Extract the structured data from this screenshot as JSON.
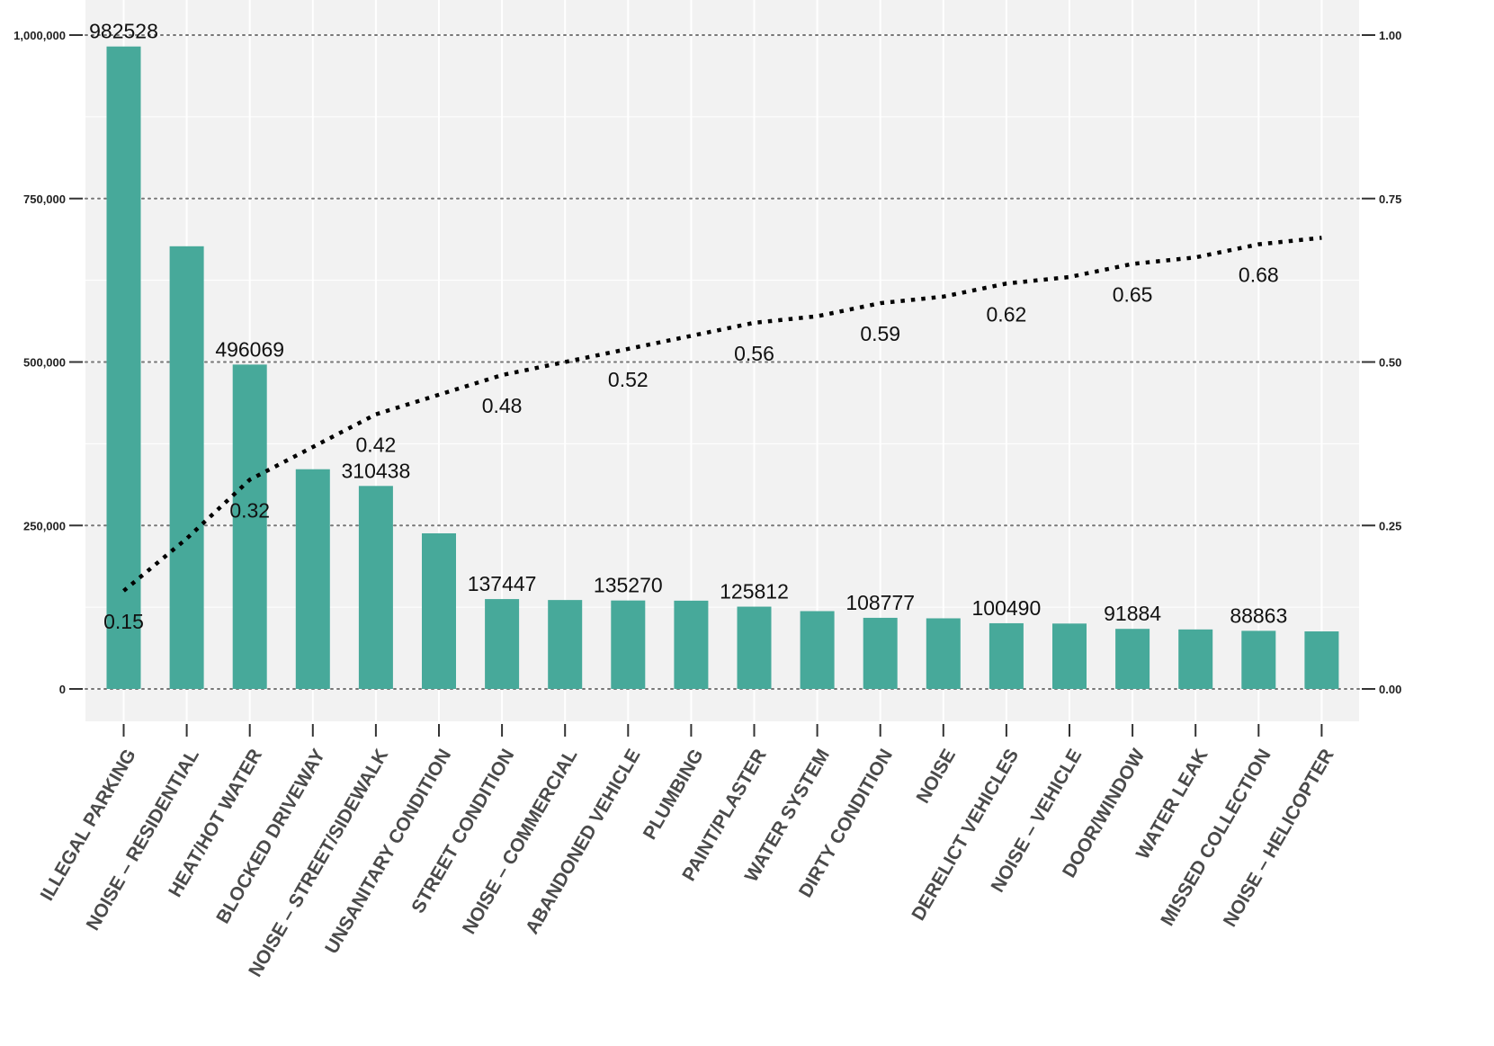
{
  "chart_data": {
    "type": "bar",
    "title": "",
    "xlabel": "",
    "ylabel": "",
    "ylabel_right": "",
    "categories": [
      "ILLEGAL PARKING",
      "NOISE – RESIDENTIAL",
      "HEAT/HOT WATER",
      "BLOCKED DRIVEWAY",
      "NOISE – STREET/SIDEWALK",
      "UNSANITARY CONDITION",
      "STREET CONDITION",
      "NOISE – COMMERCIAL",
      "ABANDONED VEHICLE",
      "PLUMBING",
      "PAINT/PLASTER",
      "WATER SYSTEM",
      "DIRTY CONDITION",
      "NOISE",
      "DERELICT VEHICLES",
      "NOISE – VEHICLE",
      "DOOR/WINDOW",
      "WATER LEAK",
      "MISSED COLLECTION",
      "NOISE – HELICOPTER"
    ],
    "series": [
      {
        "type": "bar",
        "axis": "left",
        "color": "#47a99a",
        "values": [
          982528,
          677000,
          496069,
          336000,
          310438,
          238000,
          137447,
          136000,
          135270,
          135000,
          125812,
          119000,
          108777,
          108000,
          100490,
          100000,
          91884,
          91000,
          88863,
          88000
        ]
      },
      {
        "type": "line",
        "axis": "right",
        "style": "dotted",
        "color": "#000000",
        "values": [
          0.15,
          0.23,
          0.32,
          0.37,
          0.42,
          0.45,
          0.48,
          0.5,
          0.52,
          0.54,
          0.56,
          0.57,
          0.59,
          0.6,
          0.62,
          0.63,
          0.65,
          0.66,
          0.68,
          0.69
        ]
      }
    ],
    "bar_labels": [
      {
        "index": 0,
        "text": "982528"
      },
      {
        "index": 2,
        "text": "496069"
      },
      {
        "index": 4,
        "text": "310438"
      },
      {
        "index": 6,
        "text": "137447"
      },
      {
        "index": 8,
        "text": "135270"
      },
      {
        "index": 10,
        "text": "125812"
      },
      {
        "index": 12,
        "text": "108777"
      },
      {
        "index": 14,
        "text": "100490"
      },
      {
        "index": 16,
        "text": "91884"
      },
      {
        "index": 18,
        "text": "88863"
      }
    ],
    "cum_labels": [
      {
        "index": 0,
        "text": "0.15"
      },
      {
        "index": 2,
        "text": "0.32"
      },
      {
        "index": 4,
        "text": "0.42"
      },
      {
        "index": 6,
        "text": "0.48"
      },
      {
        "index": 8,
        "text": "0.52"
      },
      {
        "index": 10,
        "text": "0.56"
      },
      {
        "index": 12,
        "text": "0.59"
      },
      {
        "index": 14,
        "text": "0.62"
      },
      {
        "index": 16,
        "text": "0.65"
      },
      {
        "index": 18,
        "text": "0.68"
      }
    ],
    "ylim": [
      -50000,
      1050000
    ],
    "y_ticks": [
      0,
      250000,
      500000,
      750000,
      1000000
    ],
    "y_tick_labels": [
      "0",
      "250,000",
      "500,000",
      "750,000",
      "1,000,000"
    ],
    "y2lim": [
      -0.05,
      1.05
    ],
    "y2_ticks": [
      0,
      0.25,
      0.5,
      0.75,
      1.0
    ],
    "y2_tick_labels": [
      "0.00",
      "0.25",
      "0.50",
      "0.75",
      "1.00"
    ],
    "grid": true,
    "legend": "none",
    "colors": {
      "bar": "#47a99a",
      "panel": "#f2f2f2",
      "gridline": "#ffffff",
      "reference_line": "#777777",
      "cumulative_line": "#000000"
    }
  }
}
